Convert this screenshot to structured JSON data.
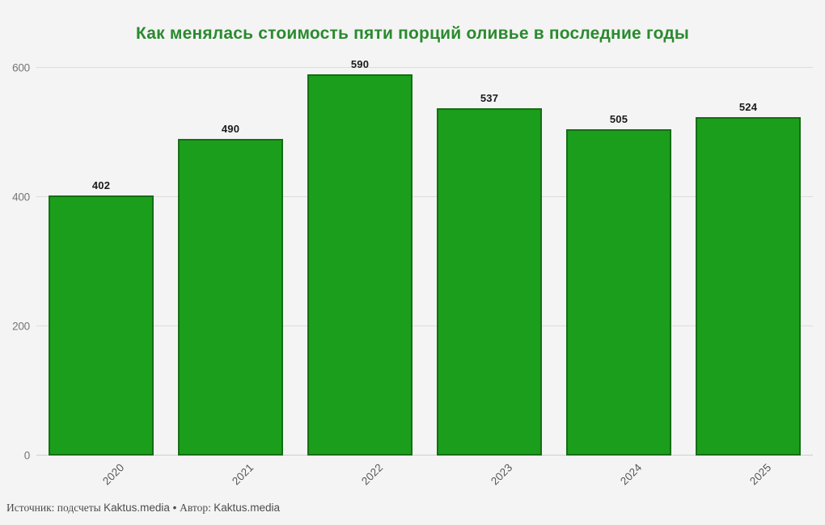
{
  "title": "Как менялась стоимость пяти порций оливье в последние годы",
  "chart_data": {
    "type": "bar",
    "categories": [
      "2020",
      "2021",
      "2022",
      "2023",
      "2024",
      "2025"
    ],
    "values": [
      402,
      490,
      590,
      537,
      505,
      524
    ],
    "title": "Как менялась стоимость пяти порций оливье в последние годы",
    "xlabel": "",
    "ylabel": "",
    "ylim": [
      0,
      600
    ],
    "yticks": [
      0,
      200,
      400,
      600
    ],
    "grid": true,
    "legend_position": "none",
    "bar_color": "#1b9e1b",
    "bar_border_color": "#156e15",
    "title_color": "#2a8a2e",
    "background_color": "#f4f4f4"
  },
  "footer": {
    "source_label": "Источник: подсчеты ",
    "source_value": "Kaktus.media",
    "separator": " • ",
    "author_label": "Автор: ",
    "author_value": "Kaktus.media"
  }
}
